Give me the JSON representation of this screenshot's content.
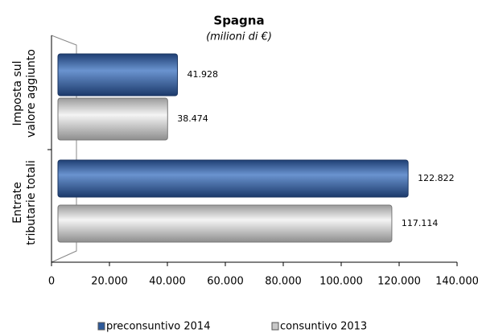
{
  "chart_data": {
    "type": "bar",
    "orientation": "horizontal",
    "title": "Spagna",
    "subtitle": "(milioni di €)",
    "categories": [
      [
        "Imposta sul",
        "valore aggiunto"
      ],
      [
        "Entrate",
        "tributarie totali"
      ]
    ],
    "series": [
      {
        "name": "preconsuntivo 2014",
        "color": "#2e5a9a",
        "values": [
          41928,
          122822
        ],
        "value_labels": [
          "41.928",
          "122.822"
        ]
      },
      {
        "name": "consuntivo 2013",
        "color": "#c8c8c8",
        "values": [
          38474,
          117114
        ],
        "value_labels": [
          "38.474",
          "117.114"
        ]
      }
    ],
    "xlim": [
      0,
      140000
    ],
    "xticks": [
      0,
      {
        "value": 20000,
        "label": "20.000"
      },
      {
        "value": 40000,
        "label": "40.000"
      },
      {
        "value": 60000,
        "label": "60.000"
      },
      {
        "value": 80000,
        "label": "80.000"
      },
      {
        "value": 100000,
        "label": "100.000"
      },
      {
        "value": 120000,
        "label": "120.000"
      },
      {
        "value": 140000,
        "label": "140.000"
      }
    ],
    "legend": "bottom"
  }
}
